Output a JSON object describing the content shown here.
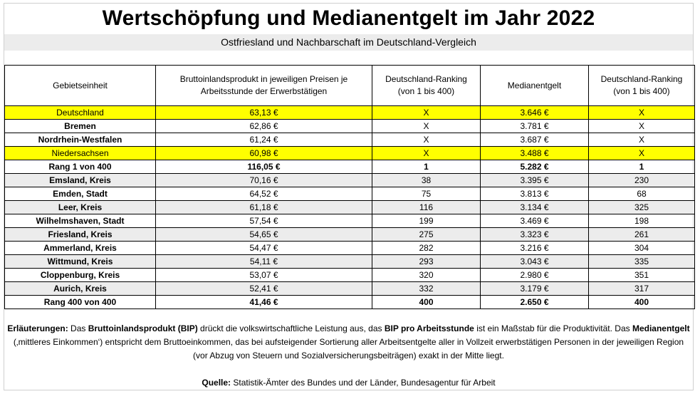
{
  "title": "Wertschöpfung und Medianentgelt im Jahr 2022",
  "subtitle": "Ostfriesland und Nachbarschaft im Deutschland-Vergleich",
  "headers": [
    "Gebietseinheit",
    "Bruttoinlandsprodukt  in jeweiligen Preisen je Arbeitsstunde der Erwerbstätigen",
    "Deutschland-Ranking (von 1 bis 400)",
    "Medianentgelt",
    "Deutschland-Ranking (von 1 bis 400)"
  ],
  "rows": [
    {
      "name": "Deutschland",
      "bip": "63,13 €",
      "rank_bip": "X",
      "median": "3.646 €",
      "rank_median": "X",
      "style": "hl"
    },
    {
      "name": "Bremen",
      "bip": "62,86 €",
      "rank_bip": "X",
      "median": "3.781 €",
      "rank_median": "X",
      "style": "plain"
    },
    {
      "name": "Nordrhein-Westfalen",
      "bip": "61,24 €",
      "rank_bip": "X",
      "median": "3.687 €",
      "rank_median": "X",
      "style": "plain"
    },
    {
      "name": "Niedersachsen",
      "bip": "60,98 €",
      "rank_bip": "X",
      "median": "3.488 €",
      "rank_median": "X",
      "style": "hl"
    },
    {
      "name": "Rang 1 von 400",
      "bip": "116,05 €",
      "rank_bip": "1",
      "median": "5.282 €",
      "rank_median": "1",
      "style": "bold"
    },
    {
      "name": "Emsland, Kreis",
      "bip": "70,16 €",
      "rank_bip": "38",
      "median": "3.395 €",
      "rank_median": "230",
      "style": "alt"
    },
    {
      "name": "Emden,  Stadt",
      "bip": "64,52 €",
      "rank_bip": "75",
      "median": "3.813 €",
      "rank_median": "68",
      "style": "plain"
    },
    {
      "name": "Leer, Kreis",
      "bip": "61,18 €",
      "rank_bip": "116",
      "median": "3.134 €",
      "rank_median": "325",
      "style": "alt"
    },
    {
      "name": "Wilhelmshaven,  Stadt",
      "bip": "57,54 €",
      "rank_bip": "199",
      "median": "3.469 €",
      "rank_median": "198",
      "style": "plain"
    },
    {
      "name": "Friesland, Kreis",
      "bip": "54,65 €",
      "rank_bip": "275",
      "median": "3.323 €",
      "rank_median": "261",
      "style": "alt"
    },
    {
      "name": "Ammerland, Kreis",
      "bip": "54,47 €",
      "rank_bip": "282",
      "median": "3.216 €",
      "rank_median": "304",
      "style": "plain"
    },
    {
      "name": "Wittmund, Kreis",
      "bip": "54,11 €",
      "rank_bip": "293",
      "median": "3.043 €",
      "rank_median": "335",
      "style": "alt"
    },
    {
      "name": "Cloppenburg, Kreis",
      "bip": "53,07 €",
      "rank_bip": "320",
      "median": "2.980 €",
      "rank_median": "351",
      "style": "plain"
    },
    {
      "name": "Aurich, Kreis",
      "bip": "52,41 €",
      "rank_bip": "332",
      "median": "3.179 €",
      "rank_median": "317",
      "style": "alt"
    },
    {
      "name": "Rang 400 von 400",
      "bip": "41,46 €",
      "rank_bip": "400",
      "median": "2.650 €",
      "rank_median": "400",
      "style": "bold"
    }
  ],
  "notes": {
    "label": "Erläuterungen:",
    "t1": " Das ",
    "b1": "Bruttoinlandsprodukt (BIP)",
    "t2": " drückt die volkswirtschaftliche Leistung aus, das ",
    "b2": "BIP pro Arbeitsstunde",
    "t3": " ist ein Maßstab für die Produktivität. Das ",
    "b3": "Medianentgelt",
    "t4": " (‚mittleres Einkommen‘) entspricht dem Bruttoeinkommen, das bei aufsteigender Sortierung aller Arbeitsentgelte aller in Vollzeit erwerbstätigen Personen in der jeweiligen Region (vor Abzug von Steuern und Sozialversicherungsbeiträgen) exakt in der Mitte liegt."
  },
  "source": {
    "label": "Quelle:",
    "text": " Statistik-Ämter des Bundes und der Länder, Bundesagentur für Arbeit"
  }
}
